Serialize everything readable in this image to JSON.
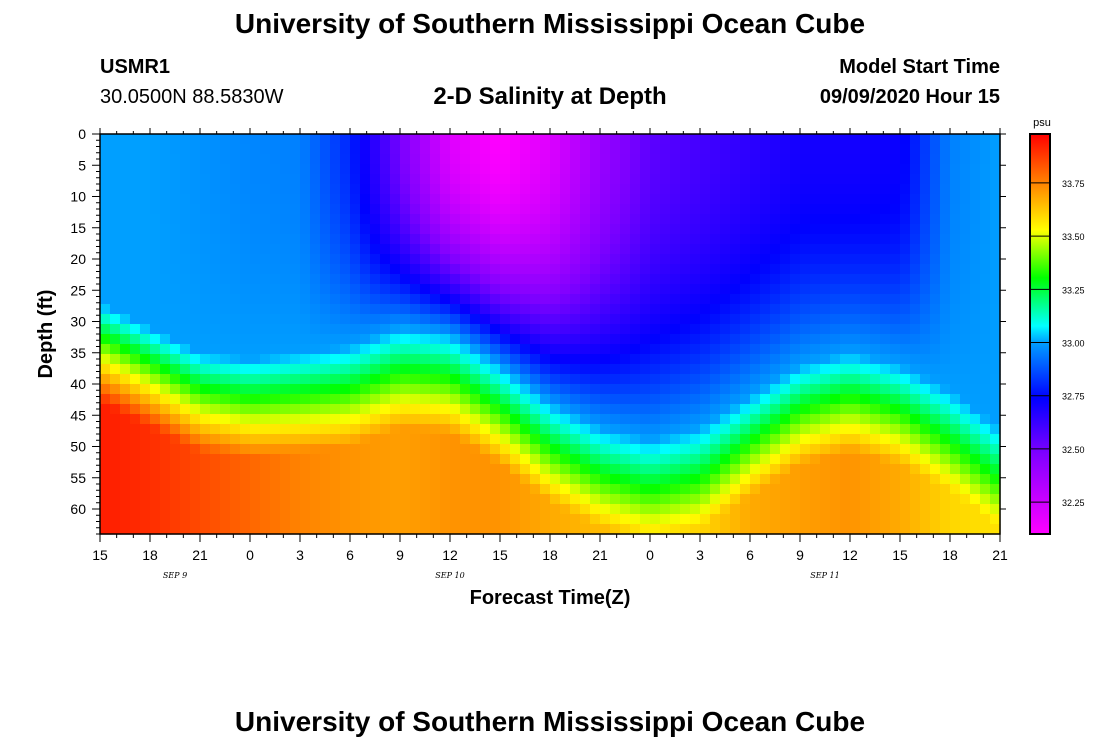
{
  "header": {
    "title": "University of Southern Mississippi Ocean Cube",
    "station": "USMR1",
    "coords": "30.0500N 88.5830W",
    "start_label": "Model Start Time",
    "start_value": "09/09/2020 Hour 15"
  },
  "footer": {
    "title": "University of Southern Mississippi Ocean Cube"
  },
  "chart_data": {
    "type": "heatmap",
    "title": "2-D Salinity at Depth",
    "xlabel": "Forecast Time(Z)",
    "ylabel": "Depth (ft)",
    "units": "psu",
    "x_hours": [
      0,
      54
    ],
    "ylim": [
      0,
      64
    ],
    "x_tick_labels": [
      "15",
      "18",
      "21",
      "0",
      "3",
      "6",
      "9",
      "12",
      "15",
      "18",
      "21",
      "0",
      "3",
      "6",
      "9",
      "12",
      "15",
      "18",
      "21"
    ],
    "y_ticks": [
      0,
      5,
      10,
      15,
      20,
      25,
      30,
      35,
      40,
      45,
      50,
      55,
      60
    ],
    "date_labels": [
      {
        "text": "SEP 9",
        "hour": 4.5
      },
      {
        "text": "SEP 10",
        "hour": 21
      },
      {
        "text": "SEP 11",
        "hour": 43.5
      }
    ],
    "colorbar": {
      "min": 32.1,
      "max": 33.98,
      "ticks": [
        "32.25",
        "32.50",
        "32.75",
        "33.00",
        "33.25",
        "33.50",
        "33.75"
      ],
      "tick_values": [
        32.25,
        32.5,
        32.75,
        33.0,
        33.25,
        33.5,
        33.75
      ]
    },
    "contour_time_hours": [
      0,
      3,
      6,
      9,
      12,
      15,
      18,
      21,
      24,
      27,
      30,
      33,
      36,
      39,
      42,
      45,
      48,
      51,
      54
    ],
    "fresh_depth_ft": [
      0,
      0,
      0,
      0,
      0,
      0,
      0,
      0,
      0.5,
      0,
      0,
      0,
      0,
      0,
      0,
      0,
      0,
      0,
      0
    ],
    "fresh_minimum_psu": [
      33.0,
      33.0,
      32.98,
      32.96,
      32.95,
      32.8,
      32.5,
      32.2,
      32.1,
      32.2,
      32.4,
      32.55,
      32.6,
      32.65,
      32.7,
      32.7,
      32.72,
      32.95,
      33.0
    ],
    "halocline_depth_ft": [
      33,
      37,
      41,
      42,
      41,
      40,
      37,
      38,
      43,
      49,
      53,
      55,
      53,
      48,
      43,
      41,
      43,
      47,
      53
    ],
    "bottom_psu": [
      33.93,
      33.9,
      33.85,
      33.8,
      33.75,
      33.72,
      33.7,
      33.72,
      33.72,
      33.68,
      33.65,
      33.62,
      33.6,
      33.68,
      33.7,
      33.72,
      33.68,
      33.6,
      33.58
    ]
  }
}
